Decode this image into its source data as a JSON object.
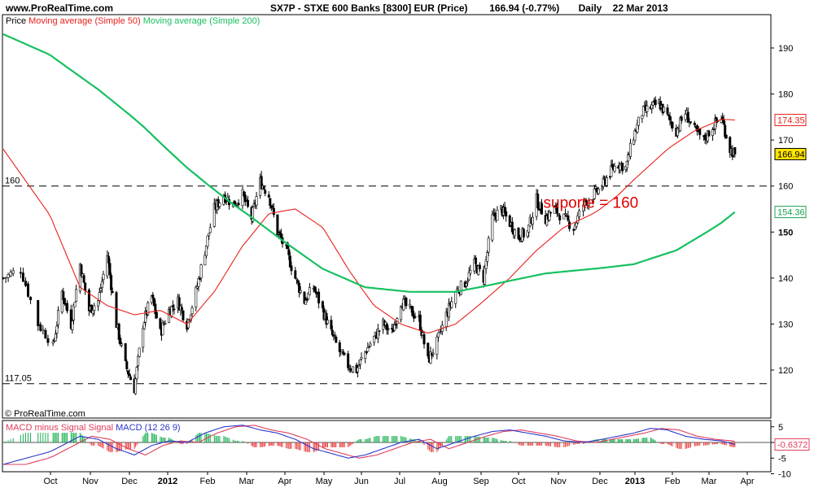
{
  "header": {
    "site": "www.ProRealTime.com",
    "title": "SX7P - STXE 600 Banks [8300] EUR (Price)",
    "last_change": "166.94 (-0.77%)",
    "period": "Daily",
    "date": "22 Mar 2013"
  },
  "copyright": "© ProRealTime.com",
  "colors": {
    "price": "#000000",
    "ma50": "#e8201c",
    "ma200": "#18c060",
    "macd_hist_pos": "#18b050",
    "macd_hist_neg": "#e83a3a",
    "macd_line": "#2b36c8",
    "signal_line": "#e03c5c",
    "annotation": "#e00000",
    "last_price_bg": "#ffe400"
  },
  "chart_data": [
    {
      "type": "candlestick",
      "legend": [
        {
          "name": "Price",
          "color": "#000000"
        },
        {
          "name": "Moving average (Simple 50)",
          "color": "#e8201c"
        },
        {
          "name": "Moving average (Simple 200)",
          "color": "#18c060"
        }
      ],
      "ylim": [
        114,
        196
      ],
      "y_ticks": [
        120,
        130,
        140,
        150,
        160,
        170,
        180,
        190
      ],
      "x_ticks": [
        "Oct",
        "Nov",
        "Dec",
        "2012",
        "Feb",
        "Mar",
        "Apr",
        "May",
        "Jun",
        "Jul",
        "Aug",
        "Sep",
        "Oct",
        "Nov",
        "Dec",
        "2013",
        "Feb",
        "Mar",
        "Apr"
      ],
      "x_ticks_bold": [
        "2012",
        "2013"
      ],
      "bold_tick": 150,
      "price_close_points": [
        [
          "2011-09-12",
          140
        ],
        [
          "2011-09-19",
          142
        ],
        [
          "2011-09-26",
          130
        ],
        [
          "2011-10-03",
          125
        ],
        [
          "2011-10-10",
          137
        ],
        [
          "2011-10-17",
          130
        ],
        [
          "2011-10-24",
          143
        ],
        [
          "2011-10-31",
          133
        ],
        [
          "2011-11-07",
          135
        ],
        [
          "2011-11-14",
          145
        ],
        [
          "2011-11-21",
          130
        ],
        [
          "2011-11-28",
          121
        ],
        [
          "2011-12-05",
          116
        ],
        [
          "2011-12-12",
          130
        ],
        [
          "2011-12-19",
          136
        ],
        [
          "2011-12-26",
          128
        ],
        [
          "2012-01-02",
          133
        ],
        [
          "2012-01-09",
          135
        ],
        [
          "2012-01-16",
          130
        ],
        [
          "2012-01-23",
          137
        ],
        [
          "2012-01-30",
          146
        ],
        [
          "2012-02-06",
          155
        ],
        [
          "2012-02-13",
          158
        ],
        [
          "2012-02-20",
          156
        ],
        [
          "2012-02-27",
          158
        ],
        [
          "2012-03-05",
          153
        ],
        [
          "2012-03-12",
          161
        ],
        [
          "2012-03-19",
          158
        ],
        [
          "2012-03-26",
          150
        ],
        [
          "2012-04-02",
          146
        ],
        [
          "2012-04-09",
          140
        ],
        [
          "2012-04-16",
          135
        ],
        [
          "2012-04-23",
          138
        ],
        [
          "2012-04-30",
          133
        ],
        [
          "2012-05-07",
          128
        ],
        [
          "2012-05-14",
          124
        ],
        [
          "2012-05-21",
          121
        ],
        [
          "2012-05-28",
          120
        ],
        [
          "2012-06-04",
          124
        ],
        [
          "2012-06-11",
          127
        ],
        [
          "2012-06-18",
          130
        ],
        [
          "2012-06-25",
          128
        ],
        [
          "2012-07-02",
          135
        ],
        [
          "2012-07-09",
          133
        ],
        [
          "2012-07-16",
          131
        ],
        [
          "2012-07-23",
          122
        ],
        [
          "2012-07-30",
          126
        ],
        [
          "2012-08-06",
          132
        ],
        [
          "2012-08-13",
          137
        ],
        [
          "2012-08-20",
          139
        ],
        [
          "2012-08-27",
          143
        ],
        [
          "2012-09-03",
          140
        ],
        [
          "2012-09-10",
          153
        ],
        [
          "2012-09-17",
          155
        ],
        [
          "2012-09-24",
          152
        ],
        [
          "2012-10-01",
          149
        ],
        [
          "2012-10-08",
          150
        ],
        [
          "2012-10-15",
          157
        ],
        [
          "2012-10-22",
          153
        ],
        [
          "2012-10-29",
          155
        ],
        [
          "2012-11-05",
          153
        ],
        [
          "2012-11-12",
          151
        ],
        [
          "2012-11-19",
          156
        ],
        [
          "2012-11-26",
          158
        ],
        [
          "2012-12-03",
          160
        ],
        [
          "2012-12-10",
          163
        ],
        [
          "2012-12-17",
          165
        ],
        [
          "2012-12-24",
          164
        ],
        [
          "2012-12-31",
          171
        ],
        [
          "2013-01-07",
          176
        ],
        [
          "2013-01-14",
          177
        ],
        [
          "2013-01-21",
          178
        ],
        [
          "2013-01-28",
          175
        ],
        [
          "2013-02-04",
          172
        ],
        [
          "2013-02-11",
          176
        ],
        [
          "2013-02-18",
          172
        ],
        [
          "2013-02-25",
          170
        ],
        [
          "2013-03-04",
          173
        ],
        [
          "2013-03-11",
          175
        ],
        [
          "2013-03-18",
          168
        ],
        [
          "2013-03-22",
          166.94
        ]
      ],
      "ma50_points": [
        [
          "2011-09-12",
          168
        ],
        [
          "2011-10-03",
          152
        ],
        [
          "2011-10-24",
          138
        ],
        [
          "2011-11-14",
          134
        ],
        [
          "2011-12-05",
          132
        ],
        [
          "2011-12-26",
          133
        ],
        [
          "2012-01-16",
          130
        ],
        [
          "2012-02-06",
          137
        ],
        [
          "2012-02-27",
          147
        ],
        [
          "2012-03-19",
          154
        ],
        [
          "2012-04-09",
          155
        ],
        [
          "2012-04-30",
          151
        ],
        [
          "2012-05-21",
          142
        ],
        [
          "2012-06-11",
          134
        ],
        [
          "2012-07-02",
          130
        ],
        [
          "2012-07-23",
          128
        ],
        [
          "2012-08-13",
          130
        ],
        [
          "2012-09-03",
          135
        ],
        [
          "2012-09-24",
          140
        ],
        [
          "2012-10-15",
          146
        ],
        [
          "2012-11-05",
          151
        ],
        [
          "2012-11-26",
          154
        ],
        [
          "2012-12-17",
          158
        ],
        [
          "2013-01-07",
          163
        ],
        [
          "2013-01-28",
          168
        ],
        [
          "2013-02-18",
          172
        ],
        [
          "2013-03-11",
          174.5
        ],
        [
          "2013-03-22",
          174.35
        ]
      ],
      "ma200_points": [
        [
          "2011-09-12",
          193
        ],
        [
          "2011-10-03",
          188
        ],
        [
          "2011-11-07",
          181
        ],
        [
          "2011-12-12",
          173
        ],
        [
          "2012-01-16",
          164
        ],
        [
          "2012-02-20",
          156
        ],
        [
          "2012-03-26",
          149
        ],
        [
          "2012-04-30",
          142
        ],
        [
          "2012-06-04",
          138
        ],
        [
          "2012-07-09",
          137
        ],
        [
          "2012-08-13",
          137
        ],
        [
          "2012-09-17",
          139
        ],
        [
          "2012-10-22",
          141
        ],
        [
          "2012-11-26",
          142
        ],
        [
          "2012-12-31",
          143
        ],
        [
          "2013-02-04",
          146
        ],
        [
          "2013-03-11",
          152
        ],
        [
          "2013-03-22",
          154.36
        ]
      ],
      "hlines": [
        {
          "value": 160,
          "label": "160",
          "style": "dashed"
        },
        {
          "value": 117.05,
          "label": "117.05",
          "style": "dashed"
        }
      ],
      "annotations": [
        {
          "text": "suporte = 160",
          "date": "2012-11-26",
          "value": 156,
          "color": "#e00000"
        }
      ],
      "value_boxes": [
        {
          "value": 174.35,
          "label": "174.35",
          "color": "#e8201c",
          "fill": "#ffffff"
        },
        {
          "value": 166.94,
          "label": "166.94",
          "color": "#000000",
          "fill": "#ffe400"
        },
        {
          "value": 154.36,
          "label": "154.36",
          "color": "#18a050",
          "fill": "#ffffff"
        }
      ]
    },
    {
      "type": "macd",
      "legend": [
        {
          "name": "MACD minus Signal",
          "color": "#e03c5c"
        },
        {
          "name": "Signal",
          "color": "#e03c5c"
        },
        {
          "name": "MACD (12 26 9)",
          "color": "#2b36c8"
        }
      ],
      "ylim": [
        -11,
        7
      ],
      "y_ticks": [
        5,
        0,
        -5,
        -10
      ],
      "last_value": {
        "value": -0.6372,
        "label": "-0.6372"
      },
      "macd_points": [
        [
          "2011-09-12",
          -7
        ],
        [
          "2011-09-26",
          -4
        ],
        [
          "2011-10-10",
          -1
        ],
        [
          "2011-10-24",
          2
        ],
        [
          "2011-11-07",
          1
        ],
        [
          "2011-11-21",
          -2
        ],
        [
          "2011-12-05",
          -4
        ],
        [
          "2011-12-19",
          -1
        ],
        [
          "2012-01-02",
          0.5
        ],
        [
          "2012-01-16",
          0
        ],
        [
          "2012-01-30",
          3
        ],
        [
          "2012-02-13",
          5
        ],
        [
          "2012-02-27",
          5.5
        ],
        [
          "2012-03-12",
          4
        ],
        [
          "2012-03-26",
          3
        ],
        [
          "2012-04-09",
          1
        ],
        [
          "2012-04-23",
          -2
        ],
        [
          "2012-05-07",
          -3.5
        ],
        [
          "2012-05-21",
          -5
        ],
        [
          "2012-06-04",
          -4
        ],
        [
          "2012-06-18",
          -2
        ],
        [
          "2012-07-02",
          0
        ],
        [
          "2012-07-16",
          1
        ],
        [
          "2012-07-30",
          -2
        ],
        [
          "2012-08-13",
          0
        ],
        [
          "2012-08-27",
          2
        ],
        [
          "2012-09-10",
          3.5
        ],
        [
          "2012-09-24",
          4
        ],
        [
          "2012-10-08",
          3
        ],
        [
          "2012-10-22",
          2
        ],
        [
          "2012-11-05",
          0.5
        ],
        [
          "2012-11-19",
          0
        ],
        [
          "2012-12-03",
          1
        ],
        [
          "2012-12-17",
          2
        ],
        [
          "2012-12-31",
          3
        ],
        [
          "2013-01-14",
          4.5
        ],
        [
          "2013-01-28",
          4
        ],
        [
          "2013-02-11",
          2
        ],
        [
          "2013-02-25",
          1
        ],
        [
          "2013-03-11",
          0.5
        ],
        [
          "2013-03-22",
          -0.6372
        ]
      ]
    }
  ]
}
